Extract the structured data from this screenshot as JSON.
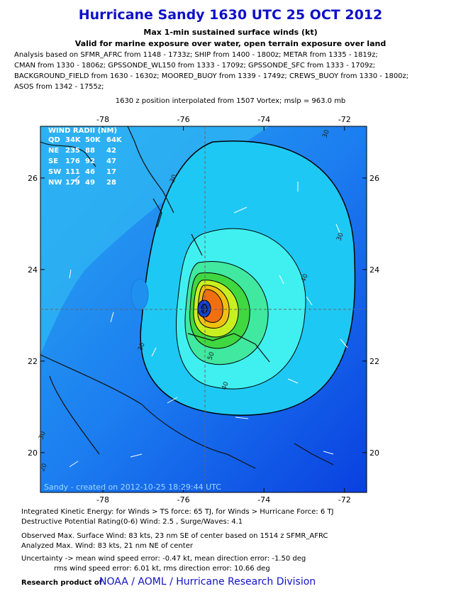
{
  "header": {
    "title": "Hurricane Sandy 1630 UTC 25 OCT 2012",
    "subtitle": "Max 1-min sustained surface winds (kt)",
    "subtitle2": "Valid for marine exposure over water, open terrain exposure over land",
    "analysis": [
      "Analysis based on SFMR_AFRC from 1148 - 1733z; SHIP from 1400 - 1800z; METAR from 1335 - 1819z;",
      "CMAN from 1330 - 1806z; GPSSONDE_WL150 from 1333 - 1709z; GPSSONDE_SFC from 1333 - 1709z;",
      "BACKGROUND_FIELD from 1630 - 1630z; MOORED_BUOY from 1339 - 1749z; CREWS_BUOY from 1330 - 1800z;",
      "ASOS from 1342 - 1755z;"
    ],
    "position_note": "1630 z position interpolated from 1507 Vortex; mslp = 963.0 mb"
  },
  "map": {
    "xlim": [
      -79.55,
      -71.45
    ],
    "ylim": [
      19.13,
      27.13
    ],
    "xticks": [
      -78,
      -76,
      -74,
      -72
    ],
    "yticks": [
      20,
      22,
      24,
      26
    ],
    "credit": "Sandy - created on 2012-10-25 18:29:44 UTC",
    "contour_labels": [
      30,
      30,
      30,
      30,
      40,
      40,
      50,
      30,
      20
    ]
  },
  "wind_radii": {
    "title": "WIND RADII (NM)",
    "header": [
      "QD",
      "34K",
      "50K",
      "64K"
    ],
    "rows": [
      [
        "NE",
        235,
        88,
        42
      ],
      [
        "SE",
        176,
        92,
        47
      ],
      [
        "SW",
        111,
        46,
        17
      ],
      [
        "NW",
        179,
        49,
        28
      ]
    ]
  },
  "footer": {
    "ike": "Integrated Kinetic Energy: for Winds > TS force: 65 TJ, for Winds > Hurricane Force: 6 TJ",
    "dpr": "Destructive Potential Rating(0-6)  Wind: 2.5 , Surge/Waves: 4.1",
    "observed": "Observed Max. Surface Wind: 83 kts, 23 nm SE of center based on 1514 z SFMR_AFRC",
    "analyzed": "Analyzed Max. Wind: 83 kts, 21 nm  NE of center",
    "uncertainty": "Uncertainty -> mean wind speed error:  -0.47 kt, mean direction error:  -1.50 deg",
    "rms": "rms wind speed error: 6.01 kt, rms direction error: 10.66 deg",
    "research": "Research product of",
    "org": "NOAA / AOML / Hurricane Research Division"
  }
}
